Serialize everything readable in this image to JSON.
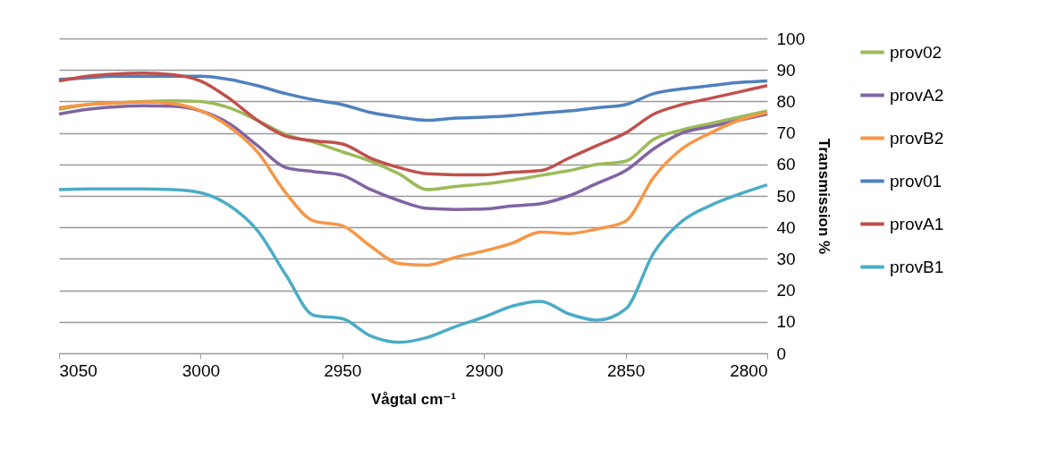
{
  "chart_data": {
    "type": "line",
    "xlabel": "Vågtal cm⁻¹",
    "ylabel": "Transmission %",
    "x": [
      3050,
      3040,
      3030,
      3020,
      3010,
      3000,
      2990,
      2980,
      2970,
      2960,
      2950,
      2940,
      2930,
      2920,
      2910,
      2900,
      2890,
      2880,
      2870,
      2860,
      2850,
      2840,
      2830,
      2820,
      2810,
      2800
    ],
    "xlim": [
      3050,
      2800
    ],
    "xticks": [
      3050,
      3000,
      2950,
      2900,
      2850,
      2800
    ],
    "ylim": [
      0,
      100
    ],
    "yticks": [
      0,
      10,
      20,
      30,
      40,
      50,
      60,
      70,
      80,
      90,
      100
    ],
    "grid": "y",
    "legend": "right",
    "marker": "none",
    "line_style": "solid",
    "series": [
      {
        "name": "prov02",
        "color": "#9bbb59",
        "values": [
          77.5,
          79,
          79.5,
          80,
          80.2,
          80,
          78,
          74,
          69.5,
          67,
          64,
          61,
          57,
          52,
          53,
          53.8,
          55,
          56.5,
          58,
          60,
          61,
          68,
          71,
          73,
          75,
          77
        ]
      },
      {
        "name": "provA2",
        "color": "#8064a2",
        "values": [
          76,
          77.5,
          78.3,
          78.6,
          78.5,
          77,
          73,
          66,
          59,
          57.7,
          56.5,
          52,
          48.5,
          46,
          45.7,
          45.8,
          46.8,
          47.5,
          50,
          54,
          58,
          65,
          70,
          72,
          74,
          76
        ]
      },
      {
        "name": "provB2",
        "color": "#f79646",
        "values": [
          78,
          79,
          79.5,
          79.8,
          79.3,
          77,
          72,
          64,
          51,
          42,
          40.5,
          34,
          28.5,
          28,
          30.5,
          32.5,
          35,
          38.5,
          38,
          39.5,
          42,
          56,
          65,
          70,
          74,
          76.5
        ]
      },
      {
        "name": "prov01",
        "color": "#4f81bd",
        "values": [
          87,
          87.5,
          88,
          88,
          88,
          88,
          87,
          85,
          82.5,
          80.5,
          79,
          76.5,
          75,
          74,
          74.7,
          75,
          75.5,
          76.3,
          77,
          78,
          79,
          82.5,
          84,
          85,
          86,
          86.5
        ]
      },
      {
        "name": "provA1",
        "color": "#c0504d",
        "values": [
          86.5,
          88,
          88.7,
          89,
          88.5,
          86.5,
          81,
          74,
          69,
          67.5,
          66.5,
          62,
          59,
          57,
          56.7,
          56.7,
          57.5,
          58,
          62,
          66,
          70,
          76,
          79,
          81,
          83,
          85
        ]
      },
      {
        "name": "provB1",
        "color": "#4bacc6",
        "values": [
          52,
          52.2,
          52.2,
          52.2,
          52,
          51,
          47,
          39,
          25,
          12,
          11,
          5.5,
          3.5,
          5,
          8.5,
          11.5,
          15,
          16.5,
          12.5,
          10.5,
          14,
          32,
          42,
          47,
          50.5,
          53.5
        ]
      }
    ]
  }
}
